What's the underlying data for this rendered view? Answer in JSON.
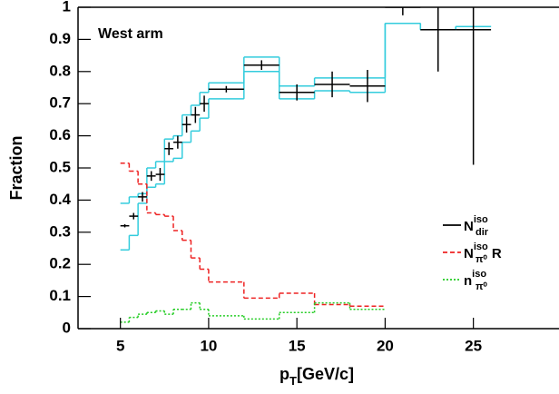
{
  "chart_data": {
    "type": "histogram",
    "annotation": "West arm",
    "ylabel": "Fraction",
    "xlabel": {
      "text": "p",
      "sub": "T",
      "suffix": "[GeV/c]"
    },
    "xlim": [
      2.6,
      29.8
    ],
    "ylim": [
      0,
      1
    ],
    "xticks": [
      5,
      10,
      15,
      20,
      25
    ],
    "yticks": [
      0,
      0.1,
      0.2,
      0.3,
      0.4,
      0.5,
      0.6,
      0.7,
      0.8,
      0.9,
      1
    ],
    "series": [
      {
        "name": "N",
        "sup": "iso",
        "sub": "dir",
        "kind": "points",
        "color": "#000000",
        "x": [
          5.25,
          5.75,
          6.25,
          6.75,
          7.25,
          7.75,
          8.25,
          8.75,
          9.25,
          9.75,
          11,
          13,
          15,
          17,
          19,
          21,
          23,
          25
        ],
        "xerr": [
          0.25,
          0.25,
          0.25,
          0.25,
          0.25,
          0.25,
          0.25,
          0.25,
          0.25,
          0.25,
          1,
          1,
          1,
          1,
          1,
          1,
          1,
          1
        ],
        "values": [
          0.32,
          0.35,
          0.41,
          0.475,
          0.48,
          0.56,
          0.58,
          0.635,
          0.665,
          0.7,
          0.745,
          0.82,
          0.735,
          0.76,
          0.755,
          1.0,
          0.93,
          0.93
        ],
        "yerr": [
          0.005,
          0.01,
          0.015,
          0.015,
          0.02,
          0.02,
          0.02,
          0.025,
          0.025,
          0.025,
          0.01,
          0.015,
          0.025,
          0.04,
          0.05,
          0.025,
          0.13,
          0.42
        ]
      },
      {
        "kind": "band",
        "color": "#33ccdd",
        "bins": [
          5,
          5.5,
          6,
          6.5,
          7,
          7.5,
          8,
          8.5,
          9,
          9.5,
          10,
          12,
          14,
          16,
          18,
          20,
          22,
          24,
          26
        ],
        "upper": [
          0.39,
          0.41,
          0.42,
          0.5,
          0.52,
          0.59,
          0.6,
          0.665,
          0.695,
          0.735,
          0.765,
          0.845,
          0.755,
          0.78,
          0.78,
          0.95,
          0.93,
          0.94
        ],
        "lower": [
          0.245,
          0.29,
          0.39,
          0.44,
          0.45,
          0.52,
          0.53,
          0.58,
          0.615,
          0.655,
          0.715,
          0.8,
          0.715,
          0.74,
          0.735,
          0.95,
          0.93,
          0.94
        ]
      },
      {
        "name": "N",
        "sup": "iso",
        "sub": "π⁰",
        "suffix": "R",
        "kind": "step",
        "color": "#ee2222",
        "dash": "5,3",
        "bins": [
          5,
          5.5,
          6,
          6.5,
          7,
          7.5,
          8,
          8.5,
          9,
          9.5,
          10,
          12,
          14,
          16,
          18,
          20
        ],
        "values": [
          0.515,
          0.49,
          0.45,
          0.36,
          0.355,
          0.35,
          0.305,
          0.275,
          0.22,
          0.185,
          0.145,
          0.095,
          0.11,
          0.075,
          0.07
        ]
      },
      {
        "name": "n",
        "sup": "iso",
        "sub": "π⁰",
        "kind": "step",
        "color": "#22cc22",
        "dash": "2,2",
        "bins": [
          5,
          5.5,
          6,
          6.5,
          7,
          7.5,
          8,
          8.5,
          9,
          9.5,
          10,
          12,
          14,
          16,
          18,
          20
        ],
        "values": [
          0.02,
          0.035,
          0.045,
          0.05,
          0.055,
          0.045,
          0.06,
          0.06,
          0.08,
          0.06,
          0.04,
          0.03,
          0.05,
          0.08,
          0.06
        ]
      }
    ]
  }
}
